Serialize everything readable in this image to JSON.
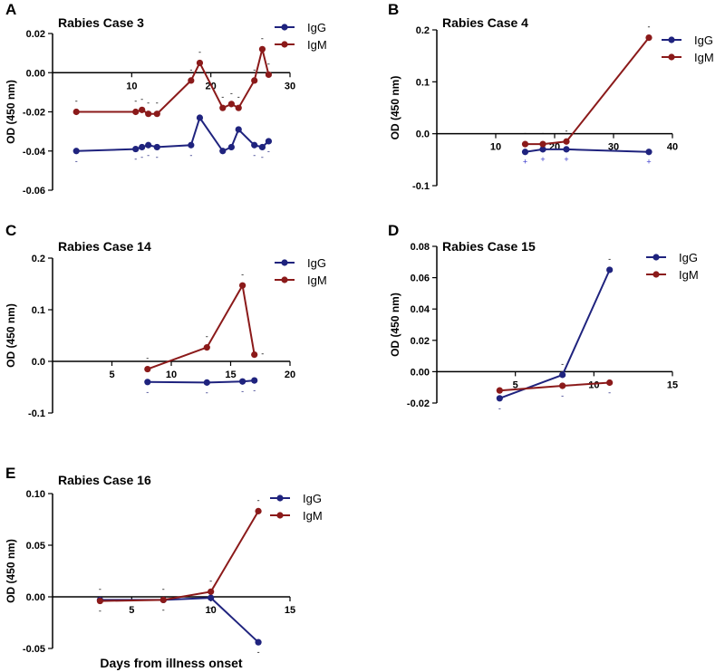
{
  "colors": {
    "IgG": "#1f237e",
    "IgM": "#8b1a1a",
    "axis": "#000000"
  },
  "figure": {
    "xlabel": "Days from illness onset"
  },
  "chart_data": [
    {
      "id": "A",
      "letter": "A",
      "title": "Rabies Case 3",
      "type": "line",
      "xlim": [
        0,
        30
      ],
      "ylim": [
        -0.06,
        0.02
      ],
      "xticks": [
        10,
        20,
        30
      ],
      "yticks": [
        0.02,
        0.0,
        -0.02,
        -0.04,
        -0.06
      ],
      "ytick_labels": [
        "0.02",
        "0.00",
        "-0.02",
        "-0.04",
        "-0.06"
      ],
      "ylabel": "OD (450 nm)",
      "series": [
        {
          "name": "IgG",
          "color": "#1f237e",
          "x": [
            3,
            10.5,
            11.3,
            12.1,
            13.2,
            17.5,
            18.6,
            21.5,
            22.6,
            23.5,
            25.5,
            26.5,
            27.3
          ],
          "y": [
            -0.04,
            -0.039,
            -0.038,
            -0.037,
            -0.038,
            -0.037,
            -0.023,
            -0.04,
            -0.038,
            -0.029,
            -0.037,
            -0.038,
            -0.035
          ]
        },
        {
          "name": "IgM",
          "color": "#8b1a1a",
          "x": [
            3,
            10.5,
            11.3,
            12.1,
            13.2,
            17.5,
            18.6,
            21.5,
            22.6,
            23.5,
            25.5,
            26.5,
            27.3
          ],
          "y": [
            -0.02,
            -0.02,
            -0.019,
            -0.021,
            -0.021,
            -0.004,
            0.005,
            -0.018,
            -0.016,
            -0.018,
            -0.004,
            0.012,
            -0.001
          ]
        }
      ],
      "annotations": [
        {
          "x": 3,
          "y": -0.02,
          "text": "-",
          "pos": "above",
          "color": "#000000"
        },
        {
          "x": 10.5,
          "y": -0.02,
          "text": "-",
          "pos": "above",
          "color": "#000000"
        },
        {
          "x": 11.3,
          "y": -0.019,
          "text": "-",
          "pos": "above",
          "color": "#000000"
        },
        {
          "x": 12.1,
          "y": -0.021,
          "text": "-",
          "pos": "above",
          "color": "#000000"
        },
        {
          "x": 13.2,
          "y": -0.021,
          "text": "-",
          "pos": "above",
          "color": "#000000"
        },
        {
          "x": 17.5,
          "y": -0.004,
          "text": "-",
          "pos": "above",
          "color": "#000000"
        },
        {
          "x": 18.6,
          "y": 0.005,
          "text": "-",
          "pos": "above",
          "color": "#000000"
        },
        {
          "x": 21.5,
          "y": -0.018,
          "text": "-",
          "pos": "above",
          "color": "#000000"
        },
        {
          "x": 22.6,
          "y": -0.016,
          "text": "-",
          "pos": "above",
          "color": "#000000"
        },
        {
          "x": 23.5,
          "y": -0.018,
          "text": "-",
          "pos": "above",
          "color": "#000000"
        },
        {
          "x": 25.5,
          "y": -0.004,
          "text": "-",
          "pos": "above",
          "color": "#000000"
        },
        {
          "x": 26.5,
          "y": 0.012,
          "text": "-",
          "pos": "above",
          "color": "#000000"
        },
        {
          "x": 27.3,
          "y": -0.001,
          "text": "-",
          "pos": "above",
          "color": "#000000"
        },
        {
          "x": 3,
          "y": -0.04,
          "text": "-",
          "pos": "below",
          "color": "#1f237e"
        },
        {
          "x": 10.5,
          "y": -0.039,
          "text": "-",
          "pos": "below",
          "color": "#1f237e"
        },
        {
          "x": 11.3,
          "y": -0.038,
          "text": "-",
          "pos": "below",
          "color": "#1f237e"
        },
        {
          "x": 12.1,
          "y": -0.037,
          "text": "-",
          "pos": "below",
          "color": "#1f237e"
        },
        {
          "x": 13.2,
          "y": -0.038,
          "text": "-",
          "pos": "below",
          "color": "#1f237e"
        },
        {
          "x": 17.5,
          "y": -0.037,
          "text": "-",
          "pos": "below",
          "color": "#1f237e"
        },
        {
          "x": 25.5,
          "y": -0.037,
          "text": "-",
          "pos": "below",
          "color": "#1f237e"
        },
        {
          "x": 26.5,
          "y": -0.038,
          "text": "-",
          "pos": "below",
          "color": "#1f237e"
        },
        {
          "x": 27.3,
          "y": -0.035,
          "text": "-",
          "pos": "below",
          "color": "#1f237e"
        }
      ]
    },
    {
      "id": "B",
      "letter": "B",
      "title": "Rabies Case 4",
      "type": "line",
      "xlim": [
        0,
        40
      ],
      "ylim": [
        -0.1,
        0.2
      ],
      "xticks": [
        10,
        20,
        30,
        40
      ],
      "yticks": [
        0.2,
        0.1,
        0.0,
        -0.1
      ],
      "ytick_labels": [
        "0.2",
        "0.1",
        "0.0",
        "-0.1"
      ],
      "ylabel": "OD (450 nm)",
      "series": [
        {
          "name": "IgG",
          "color": "#1f237e",
          "x": [
            15,
            18,
            22,
            36
          ],
          "y": [
            -0.035,
            -0.03,
            -0.03,
            -0.035
          ]
        },
        {
          "name": "IgM",
          "color": "#8b1a1a",
          "x": [
            15,
            18,
            22,
            36
          ],
          "y": [
            -0.02,
            -0.02,
            -0.015,
            0.185
          ]
        }
      ],
      "annotations": [
        {
          "x": 15,
          "y": -0.02,
          "text": "-",
          "pos": "above",
          "color": "#000000"
        },
        {
          "x": 18,
          "y": -0.02,
          "text": "-",
          "pos": "above",
          "color": "#000000"
        },
        {
          "x": 22,
          "y": -0.015,
          "text": "-",
          "pos": "above",
          "color": "#000000"
        },
        {
          "x": 36,
          "y": 0.185,
          "text": "-",
          "pos": "above",
          "color": "#000000"
        },
        {
          "x": 15,
          "y": -0.035,
          "text": "+",
          "pos": "below",
          "color": "#3a3acc"
        },
        {
          "x": 18,
          "y": -0.03,
          "text": "+",
          "pos": "below",
          "color": "#3a3acc"
        },
        {
          "x": 22,
          "y": -0.03,
          "text": "+",
          "pos": "below",
          "color": "#3a3acc"
        },
        {
          "x": 36,
          "y": -0.035,
          "text": "+",
          "pos": "below",
          "color": "#3a3acc"
        }
      ]
    },
    {
      "id": "C",
      "letter": "C",
      "title": "Rabies Case 14",
      "type": "line",
      "xlim": [
        0,
        20
      ],
      "ylim": [
        -0.1,
        0.2
      ],
      "xticks": [
        5,
        10,
        15,
        20
      ],
      "yticks": [
        0.2,
        0.1,
        0.0,
        -0.1
      ],
      "ytick_labels": [
        "0.2",
        "0.1",
        "0.0",
        "-0.1"
      ],
      "ylabel": "OD (450 nm)",
      "series": [
        {
          "name": "IgG",
          "color": "#1f237e",
          "x": [
            8,
            13,
            16,
            17
          ],
          "y": [
            -0.04,
            -0.041,
            -0.039,
            -0.037
          ]
        },
        {
          "name": "IgM",
          "color": "#8b1a1a",
          "x": [
            8,
            13,
            16,
            17
          ],
          "y": [
            -0.015,
            0.027,
            0.147,
            0.013
          ]
        }
      ],
      "annotations": [
        {
          "x": 8,
          "y": -0.015,
          "text": "-",
          "pos": "above",
          "color": "#000000"
        },
        {
          "x": 13,
          "y": 0.027,
          "text": "-",
          "pos": "above",
          "color": "#000000"
        },
        {
          "x": 16,
          "y": 0.147,
          "text": "-",
          "pos": "above",
          "color": "#000000"
        },
        {
          "x": 17,
          "y": 0.013,
          "text": "-",
          "pos": "right",
          "color": "#000000"
        },
        {
          "x": 8,
          "y": -0.04,
          "text": "-",
          "pos": "below",
          "color": "#1f237e"
        },
        {
          "x": 13,
          "y": -0.041,
          "text": "-",
          "pos": "below",
          "color": "#1f237e"
        },
        {
          "x": 16,
          "y": -0.039,
          "text": "-",
          "pos": "below",
          "color": "#1f237e"
        },
        {
          "x": 17,
          "y": -0.037,
          "text": "-",
          "pos": "below",
          "color": "#1f237e"
        }
      ]
    },
    {
      "id": "D",
      "letter": "D",
      "title": "Rabies Case 15",
      "type": "line",
      "xlim": [
        0,
        15
      ],
      "ylim": [
        -0.02,
        0.08
      ],
      "xticks": [
        5,
        10,
        15
      ],
      "yticks": [
        0.08,
        0.06,
        0.04,
        0.02,
        0.0,
        -0.02
      ],
      "ytick_labels": [
        "0.08",
        "0.06",
        "0.04",
        "0.02",
        "0.00",
        "-0.02"
      ],
      "ylabel": "OD (450 nm)",
      "series": [
        {
          "name": "IgG",
          "color": "#1f237e",
          "x": [
            4,
            8,
            11
          ],
          "y": [
            -0.017,
            -0.002,
            0.065
          ]
        },
        {
          "name": "IgM",
          "color": "#8b1a1a",
          "x": [
            4,
            8,
            11
          ],
          "y": [
            -0.012,
            -0.009,
            -0.007
          ]
        }
      ],
      "annotations": [
        {
          "x": 8,
          "y": -0.002,
          "text": "-",
          "pos": "above",
          "color": "#000000"
        },
        {
          "x": 11,
          "y": 0.065,
          "text": "-",
          "pos": "above",
          "color": "#000000"
        },
        {
          "x": 4,
          "y": -0.017,
          "text": "-",
          "pos": "below",
          "color": "#1f237e"
        },
        {
          "x": 8,
          "y": -0.009,
          "text": "-",
          "pos": "below",
          "color": "#1f237e"
        },
        {
          "x": 11,
          "y": -0.007,
          "text": "-",
          "pos": "below",
          "color": "#1f237e"
        }
      ]
    },
    {
      "id": "E",
      "letter": "E",
      "title": "Rabies Case 16",
      "type": "line",
      "xlim": [
        0,
        15
      ],
      "ylim": [
        -0.05,
        0.1
      ],
      "xticks": [
        5,
        10,
        15
      ],
      "yticks": [
        0.1,
        0.05,
        0.0,
        -0.05
      ],
      "ytick_labels": [
        "0.10",
        "0.05",
        "0.00",
        "-0.05"
      ],
      "ylabel": "OD (450 nm)",
      "series": [
        {
          "name": "IgG",
          "color": "#1f237e",
          "x": [
            3,
            7,
            10,
            13
          ],
          "y": [
            -0.003,
            -0.003,
            -0.001,
            -0.044
          ]
        },
        {
          "name": "IgM",
          "color": "#8b1a1a",
          "x": [
            3,
            7,
            10,
            13
          ],
          "y": [
            -0.004,
            -0.003,
            0.005,
            0.083
          ]
        }
      ],
      "annotations": [
        {
          "x": 3,
          "y": -0.003,
          "text": "-",
          "pos": "above",
          "color": "#000000"
        },
        {
          "x": 7,
          "y": -0.003,
          "text": "-",
          "pos": "above",
          "color": "#000000"
        },
        {
          "x": 10,
          "y": 0.005,
          "text": "-",
          "pos": "above",
          "color": "#000000"
        },
        {
          "x": 13,
          "y": 0.083,
          "text": "-",
          "pos": "above",
          "color": "#000000"
        },
        {
          "x": 3,
          "y": -0.004,
          "text": "-",
          "pos": "below",
          "color": "#000000"
        },
        {
          "x": 7,
          "y": -0.003,
          "text": "-",
          "pos": "below",
          "color": "#000000"
        },
        {
          "x": 10,
          "y": -0.001,
          "text": "-",
          "pos": "below",
          "color": "#000000"
        },
        {
          "x": 13,
          "y": -0.044,
          "text": "-",
          "pos": "below",
          "color": "#000000"
        }
      ]
    }
  ]
}
